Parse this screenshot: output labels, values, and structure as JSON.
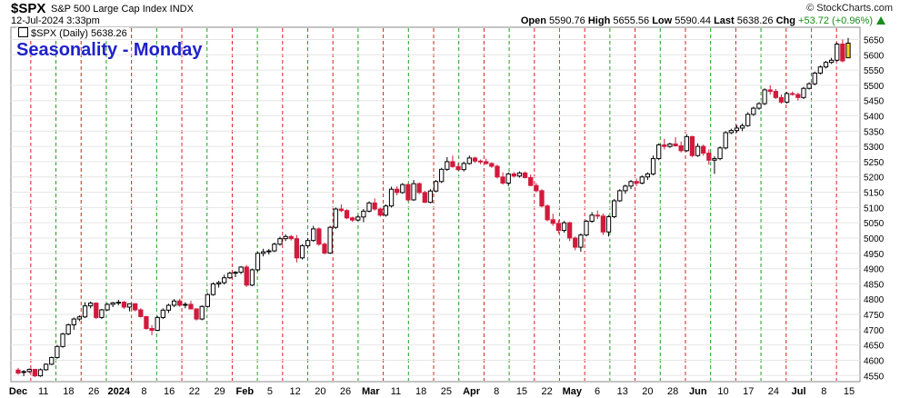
{
  "header": {
    "symbol": "$SPX",
    "description": "S&P 500 Large Cap Index INDX",
    "date": "12-Jul-2024 3:33pm",
    "copyright": "© StockCharts.com",
    "open_label": "Open",
    "open": "5590.76",
    "high_label": "High",
    "high": "5655.56",
    "low_label": "Low",
    "low": "5590.44",
    "last_label": "Last",
    "last": "5638.26",
    "chg_label": "Chg",
    "chg": "+53.72 (+0.96%)"
  },
  "legend": {
    "label": "$SPX (Daily) 5638.26"
  },
  "chart_data": {
    "type": "candlestick",
    "title": "Seasonality - Monday",
    "ylim": [
      4530,
      5690
    ],
    "y_ticks": [
      4550,
      4600,
      4650,
      4700,
      4750,
      4800,
      4850,
      4900,
      4950,
      5000,
      5050,
      5100,
      5150,
      5200,
      5250,
      5300,
      5350,
      5400,
      5450,
      5500,
      5550,
      5600,
      5650
    ],
    "x_tick_labels": [
      "Dec",
      "11",
      "18",
      "26",
      "2024",
      "8",
      "16",
      "22",
      "29",
      "Feb",
      "5",
      "12",
      "20",
      "26",
      "Mar",
      "11",
      "18",
      "25",
      "Apr",
      "8",
      "15",
      "22",
      "May",
      "6",
      "13",
      "20",
      "28",
      "Jun",
      "10",
      "17",
      "24",
      "Jul",
      "8",
      "15"
    ],
    "series": [
      {
        "values": [
          [
            4568,
            4575,
            4553,
            4558
          ],
          [
            4560,
            4568,
            4548,
            4563
          ],
          [
            4563,
            4573,
            4558,
            4570
          ],
          [
            4570,
            4572,
            4545,
            4549
          ],
          [
            4549,
            4573,
            4546,
            4569
          ],
          [
            4569,
            4590,
            4566,
            4587
          ],
          [
            4587,
            4612,
            4584,
            4609
          ],
          [
            4609,
            4650,
            4605,
            4645
          ],
          [
            4645,
            4690,
            4641,
            4686
          ],
          [
            4686,
            4720,
            4682,
            4716
          ],
          [
            4716,
            4740,
            4700,
            4735
          ],
          [
            4735,
            4747,
            4728,
            4742
          ],
          [
            4742,
            4790,
            4738,
            4778
          ],
          [
            4778,
            4792,
            4770,
            4787
          ],
          [
            4787,
            4790,
            4735,
            4740
          ],
          [
            4740,
            4768,
            4735,
            4765
          ],
          [
            4765,
            4787,
            4762,
            4783
          ],
          [
            4783,
            4791,
            4774,
            4788
          ],
          [
            4788,
            4798,
            4780,
            4790
          ],
          [
            4790,
            4794,
            4768,
            4774
          ],
          [
            4774,
            4786,
            4760,
            4785
          ],
          [
            4785,
            4787,
            4760,
            4765
          ],
          [
            4765,
            4770,
            4740,
            4743
          ],
          [
            4743,
            4745,
            4700,
            4704
          ],
          [
            4704,
            4715,
            4682,
            4698
          ],
          [
            4698,
            4745,
            4695,
            4740
          ],
          [
            4740,
            4770,
            4735,
            4764
          ],
          [
            4764,
            4785,
            4755,
            4780
          ],
          [
            4780,
            4800,
            4774,
            4794
          ],
          [
            4794,
            4801,
            4775,
            4780
          ],
          [
            4780,
            4790,
            4770,
            4783
          ],
          [
            4783,
            4795,
            4767,
            4768
          ],
          [
            4768,
            4770,
            4730,
            4735
          ],
          [
            4735,
            4780,
            4731,
            4776
          ],
          [
            4776,
            4820,
            4772,
            4815
          ],
          [
            4815,
            4855,
            4811,
            4850
          ],
          [
            4850,
            4860,
            4838,
            4854
          ],
          [
            4854,
            4880,
            4848,
            4870
          ],
          [
            4870,
            4890,
            4866,
            4885
          ],
          [
            4885,
            4892,
            4872,
            4888
          ],
          [
            4888,
            4908,
            4882,
            4905
          ],
          [
            4905,
            4912,
            4840,
            4846
          ],
          [
            4846,
            4900,
            4842,
            4896
          ],
          [
            4896,
            4955,
            4890,
            4950
          ],
          [
            4950,
            4965,
            4940,
            4955
          ],
          [
            4955,
            4964,
            4946,
            4958
          ],
          [
            4958,
            4985,
            4954,
            4980
          ],
          [
            4980,
            5005,
            4975,
            4998
          ],
          [
            4998,
            5012,
            4990,
            5005
          ],
          [
            5005,
            5010,
            4992,
            4998
          ],
          [
            4998,
            5010,
            4920,
            4935
          ],
          [
            4935,
            4980,
            4930,
            4975
          ],
          [
            4975,
            5000,
            4966,
            4992
          ],
          [
            4992,
            5040,
            4988,
            5030
          ],
          [
            5030,
            5035,
            4975,
            4980
          ],
          [
            4980,
            4985,
            4946,
            4951
          ],
          [
            4951,
            5040,
            4948,
            5035
          ],
          [
            5035,
            5100,
            5030,
            5095
          ],
          [
            5095,
            5110,
            5085,
            5090
          ],
          [
            5090,
            5094,
            5062,
            5066
          ],
          [
            5066,
            5070,
            5053,
            5059
          ],
          [
            5059,
            5075,
            5055,
            5069
          ],
          [
            5069,
            5095,
            5052,
            5088
          ],
          [
            5088,
            5120,
            5084,
            5115
          ],
          [
            5115,
            5130,
            5090,
            5095
          ],
          [
            5095,
            5100,
            5070,
            5075
          ],
          [
            5075,
            5110,
            5070,
            5105
          ],
          [
            5105,
            5168,
            5100,
            5160
          ],
          [
            5160,
            5170,
            5140,
            5149
          ],
          [
            5149,
            5180,
            5145,
            5175
          ],
          [
            5175,
            5179,
            5120,
            5125
          ],
          [
            5125,
            5190,
            5122,
            5178
          ],
          [
            5178,
            5182,
            5144,
            5149
          ],
          [
            5149,
            5155,
            5115,
            5117
          ],
          [
            5117,
            5160,
            5114,
            5154
          ],
          [
            5154,
            5190,
            5150,
            5185
          ],
          [
            5185,
            5230,
            5180,
            5225
          ],
          [
            5225,
            5265,
            5220,
            5250
          ],
          [
            5250,
            5270,
            5230,
            5234
          ],
          [
            5234,
            5246,
            5220,
            5224
          ],
          [
            5224,
            5250,
            5218,
            5244
          ],
          [
            5244,
            5270,
            5240,
            5262
          ],
          [
            5262,
            5266,
            5246,
            5252
          ],
          [
            5252,
            5257,
            5242,
            5250
          ],
          [
            5250,
            5260,
            5240,
            5244
          ],
          [
            5244,
            5248,
            5230,
            5235
          ],
          [
            5235,
            5240,
            5195,
            5200
          ],
          [
            5200,
            5215,
            5175,
            5180
          ],
          [
            5180,
            5215,
            5170,
            5210
          ],
          [
            5210,
            5216,
            5198,
            5203
          ],
          [
            5203,
            5218,
            5198,
            5213
          ],
          [
            5213,
            5218,
            5195,
            5198
          ],
          [
            5198,
            5208,
            5170,
            5172
          ],
          [
            5172,
            5180,
            5150,
            5155
          ],
          [
            5155,
            5160,
            5100,
            5105
          ],
          [
            5105,
            5110,
            5055,
            5060
          ],
          [
            5060,
            5080,
            5040,
            5048
          ],
          [
            5048,
            5060,
            5015,
            5025
          ],
          [
            5025,
            5056,
            5018,
            5050
          ],
          [
            5050,
            5053,
            4990,
            5000
          ],
          [
            5000,
            5005,
            4960,
            4970
          ],
          [
            4970,
            5015,
            4955,
            5010
          ],
          [
            5010,
            5060,
            5005,
            5055
          ],
          [
            5055,
            5085,
            5050,
            5075
          ],
          [
            5075,
            5090,
            5062,
            5072
          ],
          [
            5072,
            5080,
            5010,
            5020
          ],
          [
            5020,
            5075,
            5005,
            5070
          ],
          [
            5070,
            5128,
            5065,
            5122
          ],
          [
            5122,
            5160,
            5118,
            5155
          ],
          [
            5155,
            5175,
            5145,
            5170
          ],
          [
            5170,
            5190,
            5160,
            5185
          ],
          [
            5185,
            5195,
            5170,
            5180
          ],
          [
            5180,
            5205,
            5176,
            5200
          ],
          [
            5200,
            5215,
            5190,
            5210
          ],
          [
            5210,
            5270,
            5205,
            5260
          ],
          [
            5260,
            5310,
            5255,
            5305
          ],
          [
            5305,
            5325,
            5290,
            5300
          ],
          [
            5300,
            5312,
            5295,
            5308
          ],
          [
            5308,
            5330,
            5300,
            5302
          ],
          [
            5302,
            5316,
            5280,
            5286
          ],
          [
            5286,
            5340,
            5282,
            5332
          ],
          [
            5332,
            5335,
            5265,
            5270
          ],
          [
            5270,
            5310,
            5266,
            5300
          ],
          [
            5300,
            5306,
            5270,
            5278
          ],
          [
            5278,
            5290,
            5240,
            5255
          ],
          [
            5255,
            5268,
            5210,
            5260
          ],
          [
            5260,
            5300,
            5255,
            5295
          ],
          [
            5295,
            5350,
            5290,
            5345
          ],
          [
            5345,
            5358,
            5340,
            5352
          ],
          [
            5352,
            5370,
            5345,
            5360
          ],
          [
            5360,
            5375,
            5350,
            5368
          ],
          [
            5368,
            5412,
            5364,
            5405
          ],
          [
            5405,
            5430,
            5400,
            5425
          ],
          [
            5425,
            5445,
            5420,
            5440
          ],
          [
            5440,
            5490,
            5435,
            5485
          ],
          [
            5485,
            5500,
            5470,
            5480
          ],
          [
            5480,
            5488,
            5455,
            5460
          ],
          [
            5460,
            5470,
            5440,
            5445
          ],
          [
            5445,
            5478,
            5440,
            5473
          ],
          [
            5473,
            5480,
            5466,
            5470
          ],
          [
            5470,
            5476,
            5450,
            5460
          ],
          [
            5460,
            5495,
            5455,
            5490
          ],
          [
            5490,
            5510,
            5486,
            5505
          ],
          [
            5505,
            5545,
            5500,
            5540
          ],
          [
            5540,
            5565,
            5535,
            5560
          ],
          [
            5560,
            5580,
            5555,
            5575
          ],
          [
            5575,
            5590,
            5570,
            5582
          ],
          [
            5582,
            5640,
            5578,
            5635
          ],
          [
            5635,
            5650,
            5575,
            5580
          ],
          [
            5590,
            5655,
            5590,
            5638
          ]
        ]
      }
    ]
  }
}
